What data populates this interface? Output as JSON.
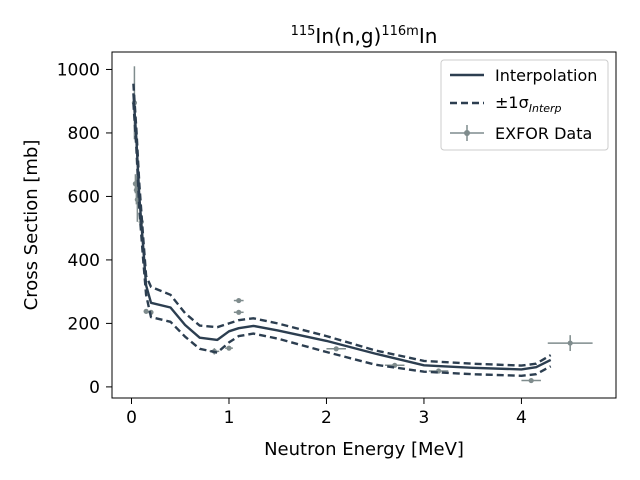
{
  "chart_data": {
    "type": "line",
    "title": {
      "pre": "115",
      "mid1": "In(n,g)",
      "sup2": "116m",
      "post": "In"
    },
    "xlabel": "Neutron Energy [MeV]",
    "ylabel": "Cross Section [mb]",
    "xlim": [
      -0.2,
      4.97
    ],
    "ylim": [
      -35,
      1055
    ],
    "x_ticks": [
      0,
      1,
      2,
      3,
      4
    ],
    "y_ticks": [
      0,
      200,
      400,
      600,
      800,
      1000
    ],
    "grid": false,
    "legend_position": "upper-right",
    "legend": {
      "interp_label": "Interpolation",
      "band_label_prefix": "±1σ",
      "band_label_sub": "Interp",
      "exfor_label": "EXFOR Data"
    },
    "colors": {
      "line": "#2c3e50",
      "exfor": "#7f8c8d"
    },
    "series": [
      {
        "name": "Interpolation",
        "style": "solid",
        "x": [
          0.02,
          0.05,
          0.08,
          0.12,
          0.15,
          0.2,
          0.4,
          0.55,
          0.7,
          0.88,
          1.0,
          1.1,
          1.25,
          1.5,
          2.0,
          2.5,
          3.0,
          3.5,
          4.0,
          4.15,
          4.3
        ],
        "y": [
          925,
          780,
          600,
          440,
          320,
          265,
          250,
          195,
          155,
          148,
          175,
          185,
          192,
          178,
          145,
          105,
          68,
          60,
          55,
          62,
          85
        ]
      },
      {
        "name": "+1σ",
        "style": "dashed",
        "x": [
          0.02,
          0.05,
          0.08,
          0.12,
          0.15,
          0.2,
          0.4,
          0.55,
          0.7,
          0.88,
          1.0,
          1.1,
          1.25,
          1.5,
          2.0,
          2.5,
          3.0,
          3.5,
          4.0,
          4.15,
          4.3
        ],
        "y": [
          955,
          810,
          640,
          470,
          350,
          315,
          290,
          232,
          193,
          188,
          200,
          210,
          216,
          200,
          160,
          115,
          82,
          73,
          67,
          73,
          100
        ]
      },
      {
        "name": "-1σ",
        "style": "dashed",
        "x": [
          0.02,
          0.05,
          0.08,
          0.12,
          0.15,
          0.2,
          0.4,
          0.55,
          0.7,
          0.88,
          1.0,
          1.1,
          1.25,
          1.5,
          2.0,
          2.5,
          3.0,
          3.5,
          4.0,
          4.15,
          4.3
        ],
        "y": [
          895,
          750,
          560,
          400,
          290,
          220,
          205,
          158,
          120,
          108,
          140,
          160,
          168,
          152,
          110,
          70,
          48,
          40,
          35,
          40,
          65
        ]
      }
    ],
    "exfor_points": [
      {
        "x": 0.03,
        "y": 895,
        "xerr": 0.005,
        "yerr": 115
      },
      {
        "x": 0.04,
        "y": 640,
        "xerr": 0.005,
        "yerr": 30
      },
      {
        "x": 0.05,
        "y": 620,
        "xerr": 0.01,
        "yerr": 45
      },
      {
        "x": 0.06,
        "y": 590,
        "xerr": 0.01,
        "yerr": 70
      },
      {
        "x": 0.1,
        "y": 520,
        "xerr": 0.01,
        "yerr": 15
      },
      {
        "x": 0.15,
        "y": 238,
        "xerr": 0.02,
        "yerr": 5
      },
      {
        "x": 0.2,
        "y": 235,
        "xerr": 0.02,
        "yerr": 5
      },
      {
        "x": 0.85,
        "y": 112,
        "xerr": 0.05,
        "yerr": 10
      },
      {
        "x": 1.0,
        "y": 122,
        "xerr": 0.04,
        "yerr": 5
      },
      {
        "x": 1.1,
        "y": 272,
        "xerr": 0.05,
        "yerr": 5
      },
      {
        "x": 1.1,
        "y": 235,
        "xerr": 0.05,
        "yerr": 5
      },
      {
        "x": 2.1,
        "y": 120,
        "xerr": 0.1,
        "yerr": 5
      },
      {
        "x": 2.7,
        "y": 68,
        "xerr": 0.1,
        "yerr": 5
      },
      {
        "x": 3.15,
        "y": 50,
        "xerr": 0.1,
        "yerr": 4
      },
      {
        "x": 4.1,
        "y": 20,
        "xerr": 0.1,
        "yerr": 4
      },
      {
        "x": 4.5,
        "y": 138,
        "xerr": 0.23,
        "yerr": 25
      }
    ]
  }
}
